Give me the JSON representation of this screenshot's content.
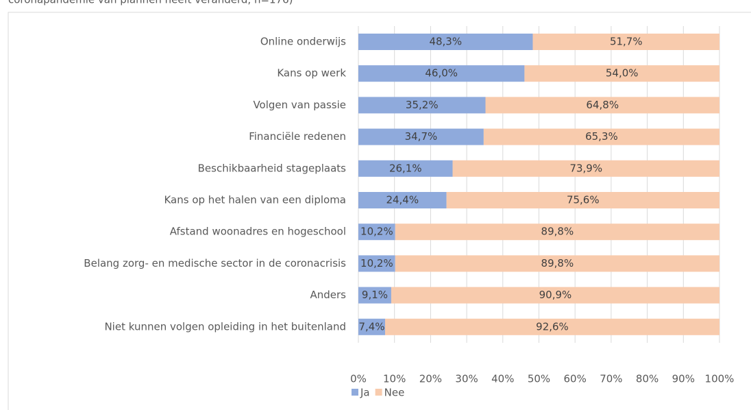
{
  "chart_data": {
    "type": "bar_stacked_horizontal",
    "title": "coronapandemie van plannen heeft veranderd, n=176)",
    "categories": [
      "Online onderwijs",
      "Kans op werk",
      "Volgen van passie",
      "Financiële redenen",
      "Beschikbaarheid stageplaats",
      "Kans op het halen van een diploma",
      "Afstand  woonadres en hogeschool",
      "Belang zorg- en medische sector in de coronacrisis",
      "Anders",
      "Niet kunnen volgen opleiding in het buitenland"
    ],
    "series": [
      {
        "name": "Ja",
        "color": "#8faadc",
        "values": [
          48.3,
          46.0,
          35.2,
          34.7,
          26.1,
          24.4,
          10.2,
          10.2,
          9.1,
          7.4
        ],
        "value_labels": [
          "48,3%",
          "46,0%",
          "35,2%",
          "34,7%",
          "26,1%",
          "24,4%",
          "10,2%",
          "10,2%",
          "9,1%",
          "7,4%"
        ]
      },
      {
        "name": "Nee",
        "color": "#f8cbad",
        "values": [
          51.7,
          54.0,
          64.8,
          65.3,
          73.9,
          75.6,
          89.8,
          89.8,
          90.9,
          92.6
        ],
        "value_labels": [
          "51,7%",
          "54,0%",
          "64,8%",
          "65,3%",
          "73,9%",
          "75,6%",
          "89,8%",
          "89,8%",
          "90,9%",
          "92,6%"
        ]
      }
    ],
    "xlim": [
      0,
      100
    ],
    "xticks": [
      {
        "value": 0,
        "label": "0%"
      },
      {
        "value": 10,
        "label": "10%"
      },
      {
        "value": 20,
        "label": "20%"
      },
      {
        "value": 30,
        "label": "30%"
      },
      {
        "value": 40,
        "label": "40%"
      },
      {
        "value": 50,
        "label": "50%"
      },
      {
        "value": 60,
        "label": "60%"
      },
      {
        "value": 70,
        "label": "70%"
      },
      {
        "value": 80,
        "label": "80%"
      },
      {
        "value": 90,
        "label": "90%"
      },
      {
        "value": 100,
        "label": "100%"
      }
    ],
    "grid": true,
    "legend": "bottom"
  }
}
